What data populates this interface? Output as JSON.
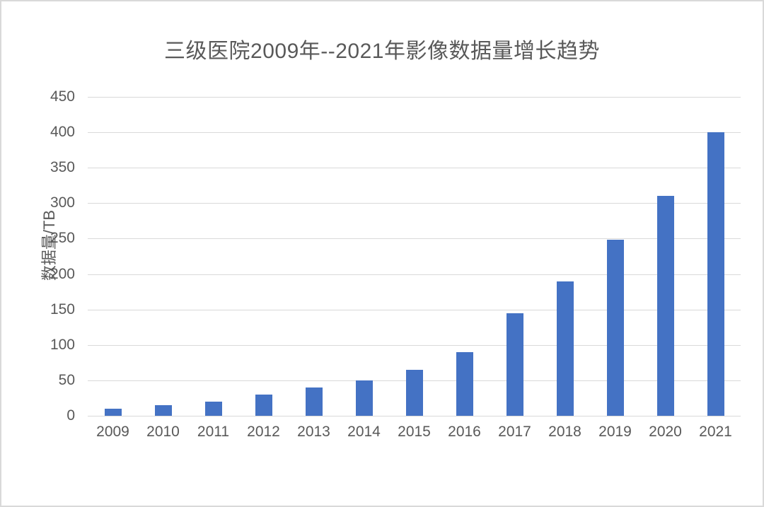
{
  "window": {
    "background_color": "#ffffff",
    "border_color": "#d9d9d9"
  },
  "chart_data": {
    "type": "bar",
    "title": "三级医院2009年--2021年影像数据量增长趋势",
    "xlabel": "",
    "ylabel": "数据量/TB",
    "categories": [
      "2009",
      "2010",
      "2011",
      "2012",
      "2013",
      "2014",
      "2015",
      "2016",
      "2017",
      "2018",
      "2019",
      "2020",
      "2021"
    ],
    "values": [
      10,
      15,
      20,
      30,
      40,
      50,
      65,
      90,
      145,
      190,
      248,
      310,
      400
    ],
    "ylim": [
      0,
      450
    ],
    "yticks": [
      0,
      50,
      100,
      150,
      200,
      250,
      300,
      350,
      400,
      450
    ],
    "grid": "horizontal",
    "legend": "none",
    "bar_color": "#4472c4",
    "gridline_color": "#d9d9d9",
    "text_color": "#595959"
  }
}
